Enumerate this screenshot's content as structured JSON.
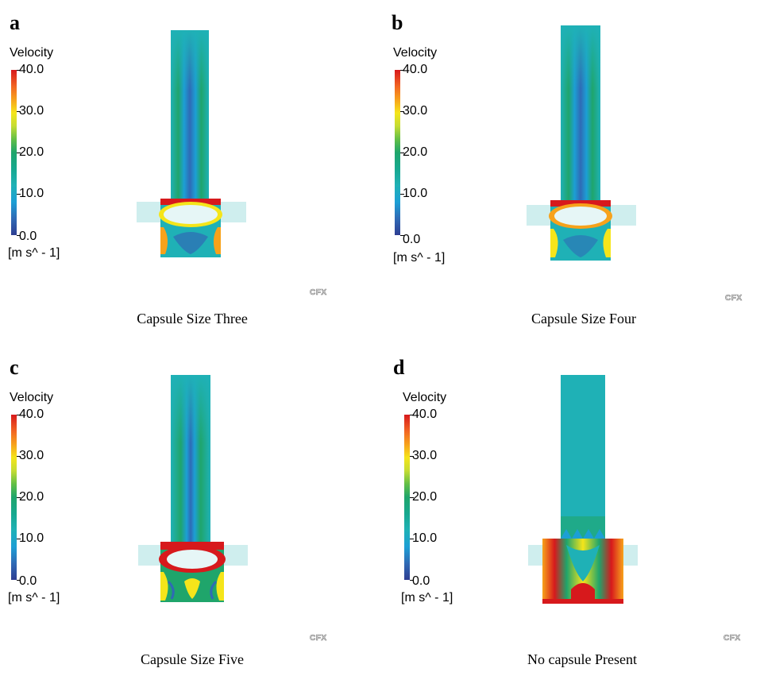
{
  "legend": {
    "title": "Velocity",
    "ticks": [
      "40.0",
      "30.0",
      "20.0",
      "10.0",
      "0.0"
    ],
    "unit": "[m s^ - 1]"
  },
  "watermark": "CFX",
  "colors": {
    "jet_blue": "#2f6ab5",
    "cyan": "#1fb1b6",
    "green": "#1fa56b",
    "yellow": "#f5e51a",
    "orange": "#f7a21b",
    "red": "#d7191c",
    "capsule": "#e6f6f6",
    "duct": "#cfeeee"
  },
  "panels": [
    {
      "letter": "a",
      "caption": "Capsule Size Three"
    },
    {
      "letter": "b",
      "caption": "Capsule Size Four"
    },
    {
      "letter": "c",
      "caption": "Capsule Size Five"
    },
    {
      "letter": "d",
      "caption": "No capsule Present"
    }
  ]
}
